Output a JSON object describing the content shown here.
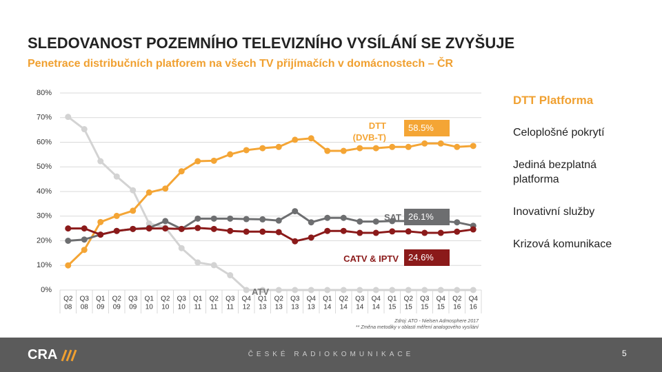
{
  "header": {
    "title": "SLEDOVANOST POZEMNÍHO TELEVIZNÍHO VYSÍLÁNÍ SE ZVYŠUJE",
    "subtitle": "Penetrace distribučních platforem na všech TV přijímačích v domácnostech – ČR"
  },
  "chart_data": {
    "type": "line",
    "categories": [
      [
        "Q2",
        "08"
      ],
      [
        "Q3",
        "08"
      ],
      [
        "Q1",
        "09"
      ],
      [
        "Q2",
        "09"
      ],
      [
        "Q3",
        "09"
      ],
      [
        "Q1",
        "10"
      ],
      [
        "Q2",
        "10"
      ],
      [
        "Q3",
        "10"
      ],
      [
        "Q1",
        "11"
      ],
      [
        "Q2",
        "11"
      ],
      [
        "Q3",
        "11"
      ],
      [
        "Q4",
        "12"
      ],
      [
        "Q1",
        "13"
      ],
      [
        "Q2",
        "13"
      ],
      [
        "Q3",
        "13"
      ],
      [
        "Q4",
        "13"
      ],
      [
        "Q1",
        "14"
      ],
      [
        "Q2",
        "14"
      ],
      [
        "Q3",
        "14"
      ],
      [
        "Q4",
        "14"
      ],
      [
        "Q1",
        "15"
      ],
      [
        "Q2",
        "15"
      ],
      [
        "Q3",
        "15"
      ],
      [
        "Q4",
        "15"
      ],
      [
        "Q2",
        "16"
      ],
      [
        "Q4",
        "16"
      ]
    ],
    "ylim": [
      0,
      80
    ],
    "yticks": [
      {
        "value": 0,
        "label": "0%"
      },
      {
        "value": 10,
        "label": "10%"
      },
      {
        "value": 20,
        "label": "20%"
      },
      {
        "value": 30,
        "label": "30%"
      },
      {
        "value": 40,
        "label": "40%"
      },
      {
        "value": 50,
        "label": "50%"
      },
      {
        "value": 60,
        "label": "60%"
      },
      {
        "value": 70,
        "label": "70%"
      },
      {
        "value": 80,
        "label": "80%"
      }
    ],
    "grid": true,
    "series": [
      {
        "name": "ATV",
        "color": "#d3d3d3",
        "values": [
          70.3,
          65.3,
          52.3,
          46.1,
          40.5,
          27,
          25.4,
          17,
          11.2,
          10.1,
          6,
          0,
          0,
          0,
          0,
          0,
          0,
          0,
          0,
          0,
          0,
          0,
          0,
          0,
          0,
          0
        ]
      },
      {
        "name": "DTT (DVB-T)",
        "color": "#f4a535",
        "values": [
          10,
          16.3,
          27.6,
          30.1,
          32.2,
          39.6,
          41.2,
          48.2,
          52.3,
          52.5,
          55.1,
          56.8,
          57.6,
          58.1,
          61,
          61.6,
          56.5,
          56.5,
          57.6,
          57.6,
          58.1,
          58.1,
          59.5,
          59.5,
          58.1,
          58.5
        ],
        "value_labels": [
          null,
          null,
          null,
          null,
          null,
          null,
          null,
          null,
          null,
          null,
          null,
          null,
          null,
          null,
          null,
          null,
          null,
          null,
          null,
          null,
          null,
          null,
          null,
          null,
          null,
          "58.5%"
        ]
      },
      {
        "name": "SAT",
        "color": "#6d6e70",
        "values": [
          20,
          20.5,
          22.5,
          24,
          24.8,
          25.2,
          28,
          24.8,
          29,
          29,
          29,
          28.8,
          28.7,
          28.2,
          32,
          27.5,
          29.3,
          29.3,
          27.8,
          27.8,
          28,
          28,
          28,
          28,
          27.5,
          26.1
        ],
        "value_labels": [
          null,
          null,
          null,
          null,
          null,
          null,
          null,
          null,
          null,
          null,
          null,
          null,
          null,
          null,
          null,
          null,
          null,
          null,
          null,
          null,
          null,
          null,
          null,
          null,
          null,
          "26.1%"
        ]
      },
      {
        "name": "CATV & IPTV",
        "color": "#8b1a1a",
        "values": [
          25,
          25,
          22.5,
          24,
          24.8,
          25,
          25,
          24.8,
          25.2,
          24.8,
          24,
          23.7,
          23.7,
          23.5,
          19.8,
          21.3,
          24,
          24,
          23.2,
          23.2,
          23.8,
          23.8,
          23.2,
          23.2,
          23.7,
          24.6
        ],
        "value_labels": [
          null,
          null,
          null,
          null,
          null,
          null,
          null,
          null,
          null,
          null,
          null,
          null,
          null,
          null,
          null,
          null,
          null,
          null,
          null,
          null,
          null,
          null,
          null,
          null,
          null,
          "24.6%"
        ]
      }
    ],
    "source": "Zdroj: ATO - Nielsen Admosphere 2017",
    "note": "** Změna metodiky v oblasti měření analogového vysílání"
  },
  "sidebar": {
    "heading": "DTT Platforma",
    "items": [
      "Celoplošné pokrytí",
      "Jediná bezplatná platforma",
      "Inovativní služby",
      "Krizová komunikace"
    ]
  },
  "footer": {
    "logo": "CRA",
    "company": "ČESKÉ RADIOKOMUNIKACE",
    "page": "5"
  }
}
